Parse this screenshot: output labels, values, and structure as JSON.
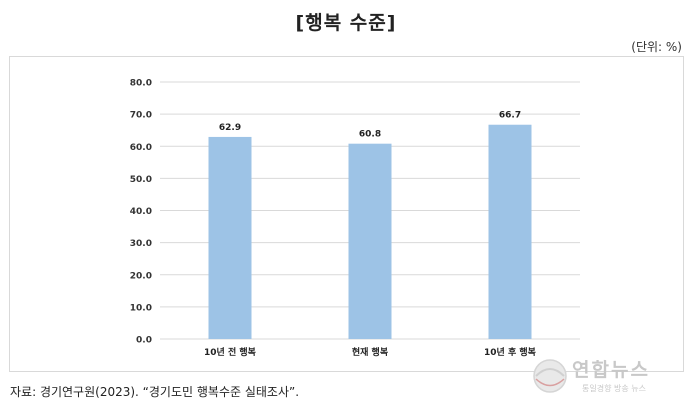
{
  "title": "[행복 수준]",
  "unit": "(단위: %)",
  "source": "자료: 경기연구원(2023). “경기도민 행복수준 실태조사”.",
  "logo": {
    "name": "연합뉴스",
    "subtitle": "통일경향 방송 뉴스"
  },
  "colors": {
    "bar": "#9dc3e6",
    "grid": "#d9d9d9",
    "axis_text": "#333333"
  },
  "chart_data": {
    "type": "bar",
    "categories": [
      "10년 전 행복",
      "현재 행복",
      "10년 후 행복"
    ],
    "values": [
      62.9,
      60.8,
      66.7
    ],
    "value_labels": [
      "62.9",
      "60.8",
      "66.7"
    ],
    "ylim": [
      0,
      80
    ],
    "yticks": [
      "0.0",
      "10.0",
      "20.0",
      "30.0",
      "40.0",
      "50.0",
      "60.0",
      "70.0",
      "80.0"
    ],
    "grid": true,
    "xlabel": "",
    "ylabel": ""
  }
}
